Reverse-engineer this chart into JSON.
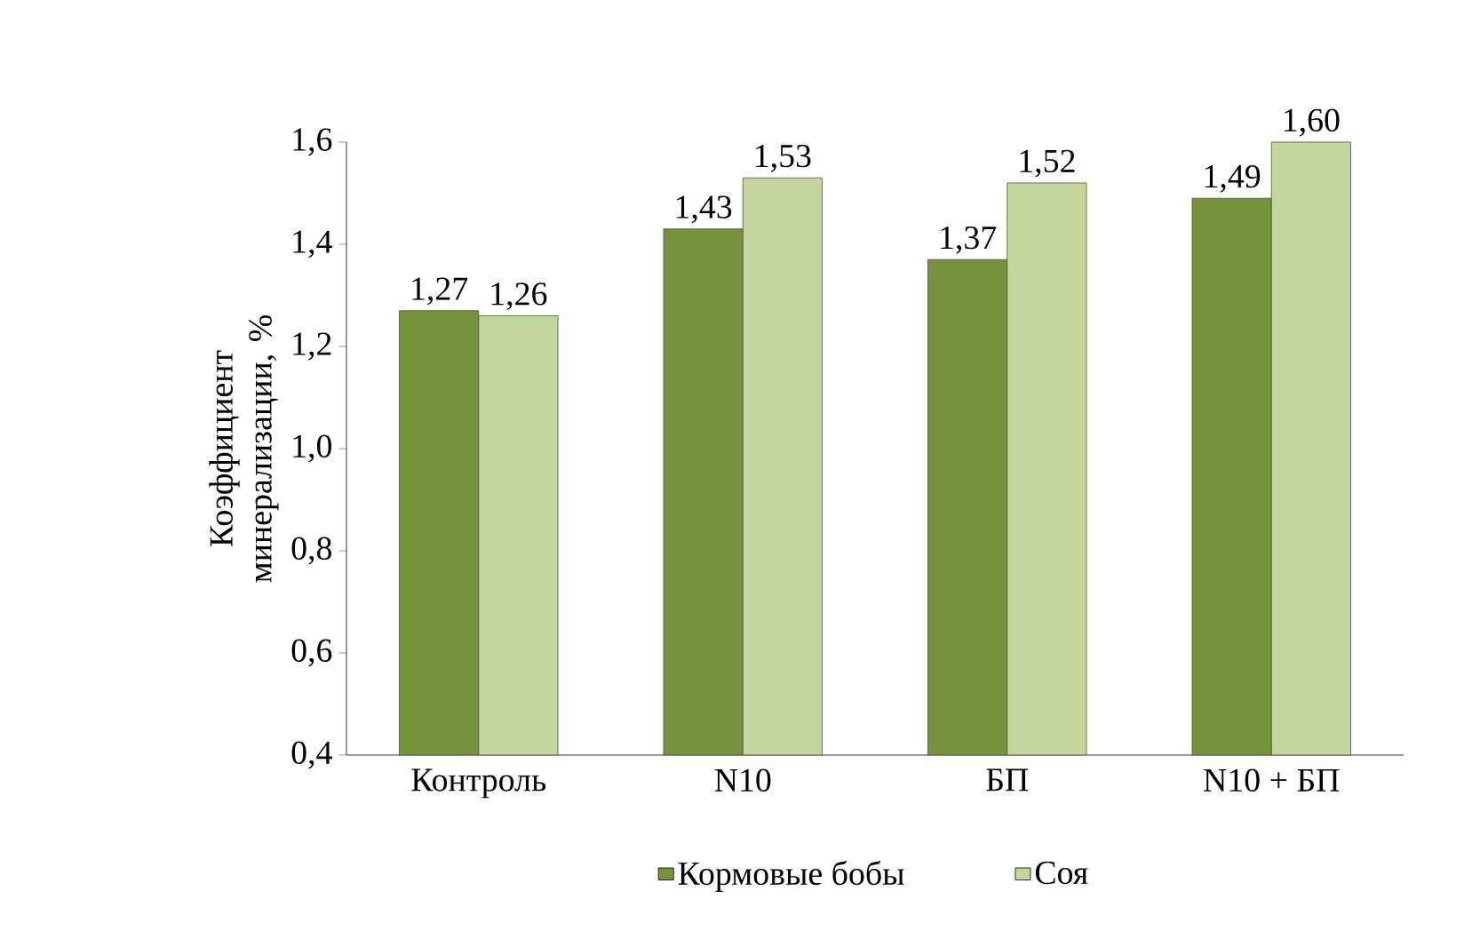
{
  "chart_data": {
    "type": "bar",
    "ylabel": "Коэффициент минерализации, %",
    "categories": [
      "Контроль",
      "N10",
      "БП",
      "N10 + БП"
    ],
    "series": [
      {
        "name": "Кормовые бобы",
        "color": "#77933c",
        "values": [
          1.27,
          1.43,
          1.37,
          1.49
        ],
        "value_labels": [
          "1,27",
          "1,43",
          "1,37",
          "1,49"
        ]
      },
      {
        "name": "Соя",
        "color": "#c3d69b",
        "values": [
          1.26,
          1.53,
          1.52,
          1.6
        ],
        "value_labels": [
          "1,26",
          "1,53",
          "1,52",
          "1,60"
        ]
      }
    ],
    "ylim": [
      0.4,
      1.6
    ],
    "yticks": [
      {
        "value": 0.4,
        "label": "0,4"
      },
      {
        "value": 0.6,
        "label": "0,6"
      },
      {
        "value": 0.8,
        "label": "0,8"
      },
      {
        "value": 1.0,
        "label": "1,0"
      },
      {
        "value": 1.2,
        "label": "1,2"
      },
      {
        "value": 1.4,
        "label": "1,4"
      },
      {
        "value": 1.6,
        "label": "1,6"
      }
    ],
    "grid": false,
    "legend": "bottom"
  }
}
